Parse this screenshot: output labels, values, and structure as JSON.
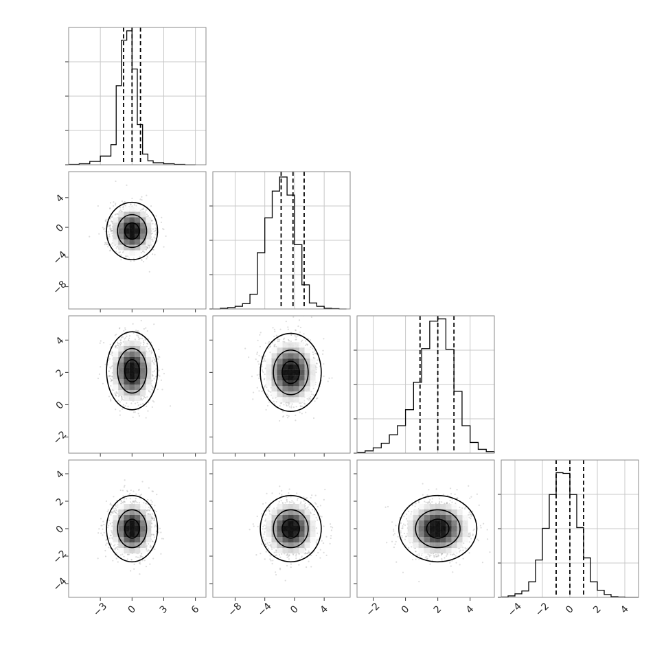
{
  "chart_data": {
    "type": "scatter",
    "title": "",
    "description_of_layout": "corner",
    "grid": true,
    "parameters": [
      {
        "index": 0,
        "range": [
          -6,
          7
        ],
        "ticks": [
          -3,
          0,
          3,
          6
        ],
        "tick_labels": [
          "−3",
          "0",
          "3",
          "6"
        ],
        "quantiles": [
          -0.8,
          0.0,
          0.8
        ],
        "histogram": {
          "bin_edges": [
            -6,
            -5,
            -4,
            -3,
            -2,
            -1.5,
            -1,
            -0.5,
            0,
            0.5,
            1,
            1.5,
            2,
            3,
            4,
            5,
            6
          ],
          "counts": [
            0.005,
            0.015,
            0.05,
            0.13,
            0.3,
            1.18,
            1.86,
            2.0,
            1.43,
            0.6,
            0.16,
            0.06,
            0.03,
            0.015,
            0.005,
            0.0
          ],
          "ylim": [
            0,
            2.05
          ]
        }
      },
      {
        "index": 1,
        "range": [
          -11,
          7.5
        ],
        "ticks": [
          -8,
          -4,
          0,
          4
        ],
        "tick_labels": [
          "−8",
          "−4",
          "0",
          "4"
        ],
        "quantiles": [
          -1.8,
          -0.2,
          1.3
        ],
        "histogram": {
          "bin_edges": [
            -11,
            -10,
            -9,
            -8,
            -7,
            -6,
            -5,
            -4,
            -3,
            -2,
            -1,
            0,
            1,
            2,
            3,
            4,
            5,
            6,
            7
          ],
          "counts": [
            0.0,
            0.01,
            0.02,
            0.04,
            0.08,
            0.22,
            0.84,
            1.36,
            1.76,
            1.97,
            1.7,
            0.96,
            0.36,
            0.09,
            0.04,
            0.01,
            0.005,
            0.0
          ],
          "ylim": [
            0,
            2.05
          ]
        }
      },
      {
        "index": 2,
        "range": [
          -3,
          5.5
        ],
        "ticks": [
          -2,
          0,
          2,
          4
        ],
        "tick_labels": [
          "−2",
          "0",
          "2",
          "4"
        ],
        "quantiles": [
          0.9,
          2.0,
          3.0
        ],
        "histogram": {
          "bin_edges": [
            -3,
            -2.5,
            -2,
            -1.5,
            -1,
            -0.5,
            0,
            0.5,
            1,
            1.5,
            2,
            2.5,
            3,
            3.5,
            4,
            4.5,
            5,
            5.5
          ],
          "counts": [
            0.01,
            0.03,
            0.07,
            0.13,
            0.24,
            0.36,
            0.57,
            0.93,
            1.37,
            1.73,
            1.76,
            1.36,
            0.81,
            0.36,
            0.14,
            0.05,
            0.02
          ],
          "ylim": [
            0,
            1.8
          ]
        }
      },
      {
        "index": 3,
        "range": [
          -5,
          5
        ],
        "ticks": [
          -4,
          -2,
          0,
          2,
          4
        ],
        "tick_labels": [
          "−4",
          "−2",
          "0",
          "2",
          "4"
        ],
        "quantiles": [
          -1.0,
          0.0,
          1.0
        ],
        "histogram": {
          "bin_edges": [
            -5,
            -4.5,
            -4,
            -3.5,
            -3,
            -2.5,
            -2,
            -1.5,
            -1,
            -0.5,
            0,
            0.5,
            1,
            1.5,
            2,
            2.5,
            3,
            3.5,
            4,
            4.5,
            5
          ],
          "counts": [
            0.005,
            0.02,
            0.05,
            0.09,
            0.22,
            0.53,
            0.98,
            1.46,
            1.77,
            1.76,
            1.46,
            0.99,
            0.56,
            0.22,
            0.1,
            0.04,
            0.01,
            0.005,
            0.0,
            0.0
          ],
          "ylim": [
            0,
            1.95
          ]
        }
      }
    ],
    "pairs": [
      {
        "x": 0,
        "y": 1,
        "center": [
          0.0,
          -0.5
        ],
        "sd": [
          1.0,
          1.6
        ],
        "contour_sigmas": [
          0.6,
          1.2,
          2.1
        ]
      },
      {
        "x": 0,
        "y": 2,
        "center": [
          0.0,
          2.1
        ],
        "sd": [
          1.0,
          1.0
        ],
        "contour_sigmas": [
          0.6,
          1.2,
          2.1
        ]
      },
      {
        "x": 1,
        "y": 2,
        "center": [
          -0.5,
          2.0
        ],
        "sd": [
          1.7,
          1.0
        ],
        "contour_sigmas": [
          0.6,
          1.2,
          2.1
        ]
      },
      {
        "x": 0,
        "y": 3,
        "center": [
          0.0,
          0.0
        ],
        "sd": [
          1.0,
          1.0
        ],
        "contour_sigmas": [
          0.6,
          1.2,
          2.1
        ]
      },
      {
        "x": 1,
        "y": 3,
        "center": [
          -0.5,
          0.0
        ],
        "sd": [
          1.7,
          1.0
        ],
        "contour_sigmas": [
          0.6,
          1.2,
          2.1
        ]
      },
      {
        "x": 2,
        "y": 3,
        "center": [
          2.0,
          0.0
        ],
        "sd": [
          1.0,
          1.0
        ],
        "contour_sigmas": [
          0.6,
          1.2,
          2.1
        ]
      }
    ]
  }
}
